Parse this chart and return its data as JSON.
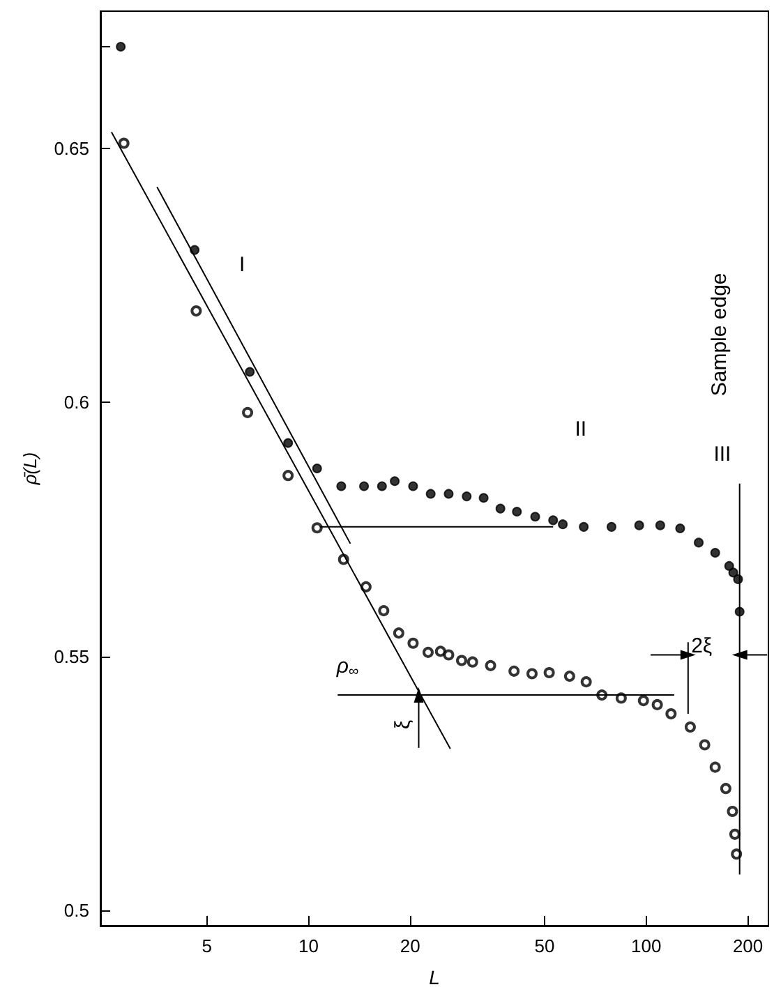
{
  "chart_data": {
    "type": "scatter",
    "xlabel": "L",
    "ylabel": "ρ̄(L)",
    "log": "x",
    "xlim": [
      2.42,
      230
    ],
    "xticks": [
      5,
      10,
      20,
      50,
      100,
      200
    ],
    "ylim": [
      0.497,
      0.677
    ],
    "yticks": [
      "0.5",
      0.55,
      0.6,
      0.65,
      {
        "value": 0.67,
        "label": null
      }
    ],
    "series": [
      {
        "color": "#000000",
        "marker": "circle",
        "x": [
          2.78,
          4.6,
          6.7,
          8.7,
          10.6,
          12.5,
          14.6,
          16.5,
          18,
          20.4,
          23.0,
          26.0,
          29.4,
          33.0,
          37.0,
          41.4,
          46.9,
          53.0,
          56.6,
          65.3,
          78.9,
          95.3,
          110,
          126,
          143,
          160,
          176,
          181,
          187,
          189
        ],
        "values": [
          0.67,
          0.63,
          0.606,
          0.592,
          0.587,
          0.5835,
          0.5835,
          0.5835,
          0.5845,
          0.5835,
          0.582,
          0.582,
          0.5815,
          0.5812,
          0.5791,
          0.5785,
          0.5775,
          0.5768,
          0.576,
          0.5755,
          0.5755,
          0.5758,
          0.5758,
          0.5752,
          0.5724,
          0.5704,
          0.5678,
          0.5665,
          0.5652,
          0.5588
        ]
      },
      {
        "color": "#000000",
        "marker": "open_circle",
        "x": [
          2.84,
          4.65,
          6.6,
          8.7,
          10.6,
          12.7,
          14.8,
          16.7,
          18.5,
          20.4,
          22.6,
          24.6,
          26.0,
          28.4,
          30.6,
          34.6,
          40.6,
          45.9,
          51.6,
          59.3,
          66.4,
          73.9,
          84.3,
          98.1,
          107.8,
          118.4,
          135,
          149,
          160,
          172,
          180,
          183,
          185
        ],
        "values": [
          0.651,
          0.618,
          0.598,
          0.5856,
          0.5753,
          0.5691,
          0.5637,
          0.559,
          0.5546,
          0.5526,
          0.5508,
          0.551,
          0.5503,
          0.5492,
          0.5489,
          0.5482,
          0.5471,
          0.5466,
          0.5468,
          0.5461,
          0.545,
          0.5424,
          0.5418,
          0.5413,
          0.5405,
          0.5387,
          0.5361,
          0.5326,
          0.5282,
          0.524,
          0.5195,
          0.515,
          0.5111
        ]
      },
      {
        "type": "line",
        "color": "#000000",
        "marker": "none",
        "x": [
          2.61,
          26.3
        ],
        "values": [
          0.6532,
          0.5318
        ]
      },
      {
        "type": "line",
        "color": "#000000",
        "marker": "none",
        "x": [
          3.56,
          13.3
        ],
        "values": [
          0.6424,
          0.5722
        ]
      },
      {
        "type": "line",
        "color": "#000000",
        "marker": "none",
        "x": [
          10.8,
          53
        ],
        "values": [
          0.5755,
          0.5755
        ]
      },
      {
        "type": "line",
        "color": "#000000",
        "marker": "none",
        "x": [
          12.2,
          121
        ],
        "values": [
          0.5424,
          0.5424
        ]
      },
      {
        "type": "line",
        "color": "#000000",
        "marker": "none",
        "x": [
          189,
          189
        ],
        "values": [
          0.584,
          0.5071
        ]
      },
      {
        "type": "line",
        "color": "#000000",
        "marker": "none",
        "x": [
          133,
          133
        ],
        "values": [
          0.5528,
          0.5387
        ]
      },
      {
        "type": "line",
        "color": "#000000",
        "marker": "triangle",
        "x": [
          21.2,
          21.2
        ],
        "values": [
          0.532,
          0.5424
        ]
      },
      {
        "type": "line",
        "color": "#000000",
        "marker": "triangle",
        "x": [
          103,
          133
        ],
        "values": [
          0.5503,
          0.5503
        ]
      },
      {
        "type": "line",
        "color": "#000000",
        "marker": "triangle",
        "x": [
          228,
          189
        ],
        "values": [
          0.5503,
          0.5503
        ]
      }
    ],
    "annotations": [
      "I",
      "II",
      "III",
      "Sample edge",
      "ρ$_{∞}$",
      "ξ",
      "2ξ"
    ]
  }
}
